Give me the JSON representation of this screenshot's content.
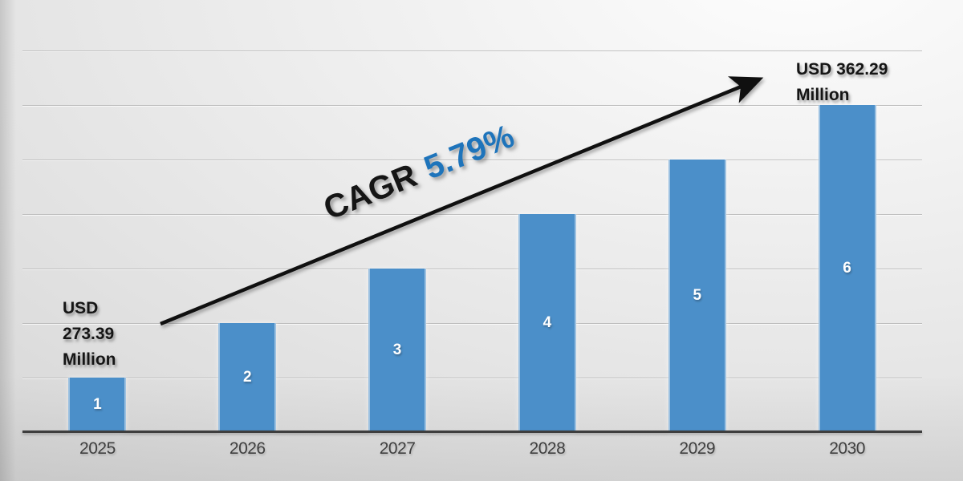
{
  "chart_data": {
    "type": "bar",
    "categories": [
      "2025",
      "2026",
      "2027",
      "2028",
      "2029",
      "2030"
    ],
    "values": [
      1,
      2,
      3,
      4,
      5,
      6
    ],
    "bar_labels": [
      "1",
      "2",
      "3",
      "4",
      "5",
      "6"
    ],
    "title": "",
    "xlabel": "",
    "ylabel": "",
    "ylim": [
      0,
      7
    ],
    "grid": "horizontal",
    "legend": "none",
    "annotations": [
      {
        "target": "2025",
        "text": "USD 273.39 Million"
      },
      {
        "target": "2030",
        "text": "USD 362.29 Million"
      },
      {
        "type": "trend-arrow",
        "text": "CAGR 5.79%"
      }
    ]
  },
  "labels": {
    "start_value": {
      "line1": "USD",
      "line2": "273.39",
      "line3": "Million"
    },
    "end_value": {
      "line1": "USD 362.29",
      "line2": "Million"
    },
    "cagr": {
      "prefix": "CAGR",
      "value": "5.79%"
    }
  },
  "colors": {
    "bar": "#4b8fc9",
    "bar_edge_highlight": "#bcd8ee",
    "cagr_value_blue": "#1e74bb",
    "label_text": "#151515",
    "year_text": "#3f3f3f",
    "axis": "#3e3e3e",
    "gridline": "#bdbdbd",
    "arrow": "#101010",
    "bar_value_text": "#ffffff"
  }
}
